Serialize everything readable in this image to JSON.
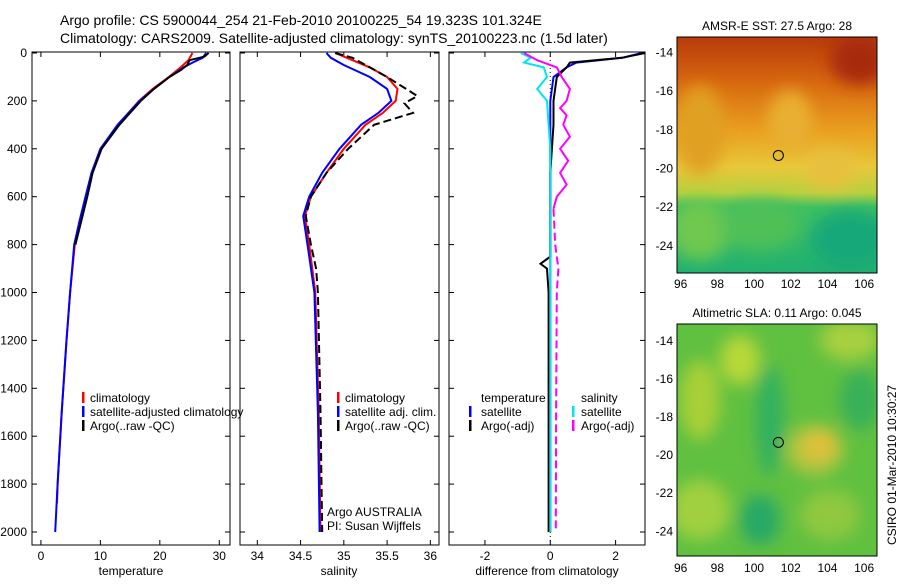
{
  "title_line1": "Argo profile: CS 5900044_254 21-Feb-2010 20100225_54 19.323S 101.324E",
  "title_line2": "Climatology: CARS2009. Satellite-adjusted climatology: synTS_20100223.nc (1.5d later)",
  "side_label": "CSIRO 01-Mar-2010 10:30:27",
  "chart_data": [
    {
      "type": "line",
      "id": "temperature",
      "xlabel": "temperature",
      "xlim": [
        -1.5,
        31.8
      ],
      "ylim": [
        0,
        2000
      ],
      "xticks": [
        0,
        10,
        20,
        30
      ],
      "yticks": [
        0,
        200,
        400,
        600,
        800,
        1000,
        1200,
        1400,
        1600,
        1800,
        2000
      ],
      "legend": [
        "climatology",
        "satellite-adjusted climatology",
        "Argo(..raw -QC)"
      ],
      "series": [
        {
          "name": "climatology",
          "color": "#ff0000",
          "dash": false,
          "depth": [
            0,
            30,
            60,
            100,
            150,
            200,
            300,
            400,
            500,
            600,
            700,
            800,
            1000,
            1200,
            1500,
            1800,
            1880
          ],
          "values": [
            25.5,
            24.8,
            23.5,
            21.5,
            18.8,
            16.5,
            13.0,
            10.0,
            8.6,
            7.6,
            6.6,
            5.7,
            4.9,
            4.3,
            3.5,
            2.8,
            2.7
          ]
        },
        {
          "name": "satellite-adjusted climatology",
          "color": "#0000ff",
          "dash": false,
          "depth": [
            0,
            20,
            40,
            60,
            100,
            150,
            200,
            300,
            400,
            500,
            600,
            700,
            800,
            1000,
            1200,
            1500,
            1800,
            2000
          ],
          "values": [
            27.8,
            27.2,
            25.5,
            24.0,
            21.6,
            19.0,
            16.6,
            12.9,
            10.0,
            8.5,
            7.5,
            6.5,
            5.6,
            4.9,
            4.3,
            3.5,
            2.8,
            2.4
          ]
        },
        {
          "name": "Argo(..raw -QC)",
          "color": "#000000",
          "dash": false,
          "depth": [
            0,
            15,
            30,
            50,
            70,
            100,
            150,
            200,
            300,
            400,
            500,
            600,
            700,
            800
          ],
          "values": [
            28.2,
            27.5,
            25.0,
            24.6,
            23.6,
            21.6,
            19.0,
            16.8,
            13.2,
            10.2,
            8.7,
            7.8,
            6.8,
            5.8
          ]
        }
      ]
    },
    {
      "type": "line",
      "id": "salinity",
      "xlabel": "salinity",
      "xlim": [
        33.8,
        36.1
      ],
      "ylim": [
        0,
        2000
      ],
      "xticks": [
        34,
        34.5,
        35,
        35.5,
        36
      ],
      "legend": [
        "climatology",
        "satellite adj. clim.",
        "Argo(..raw -QC)"
      ],
      "annotation": [
        "Argo AUSTRALIA",
        "PI: Susan Wijffels"
      ],
      "series": [
        {
          "name": "climatology",
          "color": "#ff0000",
          "dash": false,
          "depth": [
            0,
            30,
            60,
            100,
            150,
            200,
            250,
            300,
            400,
            500,
            600,
            680,
            800,
            1000,
            1500,
            2000
          ],
          "values": [
            34.9,
            35.1,
            35.3,
            35.5,
            35.62,
            35.6,
            35.45,
            35.25,
            35.0,
            34.8,
            34.62,
            34.55,
            34.6,
            34.67,
            34.71,
            34.73
          ]
        },
        {
          "name": "satellite adj. clim.",
          "color": "#0000ff",
          "dash": false,
          "depth": [
            0,
            20,
            50,
            100,
            150,
            200,
            250,
            300,
            400,
            500,
            600,
            680,
            800,
            1000,
            1500,
            2000
          ],
          "values": [
            34.8,
            34.85,
            35.0,
            35.3,
            35.5,
            35.55,
            35.4,
            35.2,
            34.95,
            34.75,
            34.6,
            34.53,
            34.58,
            34.66,
            34.7,
            34.72
          ]
        },
        {
          "name": "Argo(..raw -QC)",
          "color": "#000000",
          "dash": true,
          "depth": [
            0,
            20,
            50,
            100,
            150,
            180,
            210,
            250,
            300,
            400,
            500,
            600,
            680,
            800,
            900,
            1000,
            1500,
            2000
          ],
          "values": [
            34.9,
            35.1,
            35.25,
            35.5,
            35.72,
            35.85,
            35.7,
            35.8,
            35.35,
            35.05,
            34.8,
            34.62,
            34.56,
            34.62,
            34.68,
            34.7,
            34.73,
            34.75
          ]
        }
      ]
    },
    {
      "type": "line",
      "id": "difference",
      "xlabel": "difference from climatology",
      "xlim": [
        -3.1,
        2.9
      ],
      "ylim": [
        0,
        2000
      ],
      "xticks": [
        -2,
        0,
        2
      ],
      "legend_temperature": {
        "title": "temperature",
        "items": [
          "satellite",
          "Argo(-adj)"
        ]
      },
      "legend_salinity": {
        "title": "salinity",
        "items": [
          "satellite",
          "Argo(-adj)"
        ]
      },
      "series": [
        {
          "name": "temperature satellite",
          "color": "#0000ff",
          "dash": false,
          "depth": [
            0,
            20,
            40,
            60,
            100,
            200,
            400,
            700,
            1000,
            2000
          ],
          "values": [
            2.8,
            2.2,
            0.8,
            0.5,
            0.1,
            0.0,
            0.0,
            0.0,
            0.0,
            0.0
          ]
        },
        {
          "name": "temperature Argo(-adj)",
          "color": "#000000",
          "dash": false,
          "depth": [
            0,
            20,
            40,
            60,
            100,
            200,
            300,
            500,
            700,
            850,
            880,
            900,
            1000,
            2000
          ],
          "values": [
            2.9,
            2.2,
            0.6,
            0.5,
            0.2,
            0.1,
            0.1,
            0.0,
            0.0,
            0.0,
            -0.3,
            -0.1,
            -0.05,
            -0.05
          ]
        },
        {
          "name": "salinity satellite",
          "color": "#00e5ee",
          "dash": false,
          "depth": [
            0,
            20,
            40,
            60,
            100,
            150,
            200,
            300,
            400,
            600,
            1000,
            2000
          ],
          "values": [
            -0.9,
            -0.6,
            -0.8,
            -0.2,
            -0.1,
            -0.4,
            -0.1,
            -0.05,
            0.0,
            0.0,
            0.0,
            0.0
          ]
        },
        {
          "name": "salinity Argo(-adj)",
          "color": "#ff00ff",
          "dash": false,
          "depth": [
            0,
            30,
            60,
            100,
            150,
            200,
            230,
            260,
            300,
            350,
            400,
            450,
            500,
            550,
            600,
            650
          ],
          "values": [
            -0.8,
            -0.4,
            0.2,
            0.35,
            0.6,
            0.5,
            0.3,
            0.5,
            0.4,
            0.6,
            0.3,
            0.55,
            0.3,
            0.5,
            0.2,
            0.1
          ]
        },
        {
          "name": "salinity Argo(-adj) deep",
          "color": "#ff00ff",
          "dash": true,
          "depth": [
            650,
            800,
            900,
            1000,
            1500,
            2000
          ],
          "values": [
            0.1,
            0.15,
            0.25,
            0.2,
            0.18,
            0.17
          ]
        }
      ]
    },
    {
      "type": "heatmap",
      "id": "sst_map",
      "title": "AMSR-E SST: 27.5 Argo: 28",
      "xlim": [
        95.8,
        106.7
      ],
      "ylim": [
        -25.4,
        -13.2
      ],
      "xticks": [
        96,
        98,
        100,
        102,
        104,
        106
      ],
      "yticks": [
        -14,
        -16,
        -18,
        -20,
        -22,
        -24
      ],
      "marker": {
        "lon": 101.324,
        "lat": -19.323
      }
    },
    {
      "type": "heatmap",
      "id": "sla_map",
      "title": "Altimetric SLA: 0.11 Argo: 0.045",
      "xlim": [
        95.8,
        106.7
      ],
      "ylim": [
        -25.3,
        -13.1
      ],
      "xticks": [
        96,
        98,
        100,
        102,
        104,
        106
      ],
      "yticks": [
        -14,
        -16,
        -18,
        -20,
        -22,
        -24
      ],
      "marker": {
        "lon": 101.324,
        "lat": -19.323
      }
    }
  ]
}
